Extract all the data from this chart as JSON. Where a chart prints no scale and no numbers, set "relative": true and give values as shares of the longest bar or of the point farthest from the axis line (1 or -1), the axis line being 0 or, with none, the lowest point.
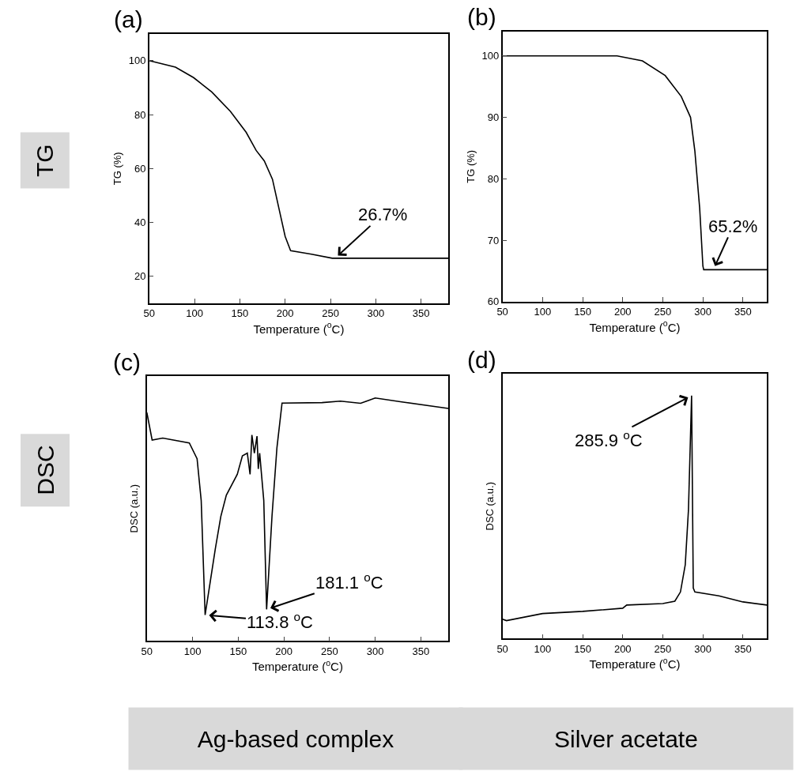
{
  "chart_data": [
    {
      "type": "line",
      "title": "(a)",
      "xlabel": "Temperature ($^{o}$C)",
      "ylabel": "TG (%)",
      "x": [
        50,
        79,
        99,
        119,
        139.6,
        157,
        168,
        177,
        186,
        193,
        200,
        206,
        229,
        252,
        380
      ],
      "series": [
        {
          "color": "#000000",
          "values": [
            100,
            97.6,
            93.7,
            88.4,
            81.2,
            73.4,
            66.7,
            62.8,
            56,
            45.4,
            34.8,
            29.5,
            28.2,
            26.7,
            26.7
          ]
        }
      ],
      "xlim": [
        50,
        380
      ],
      "xticks": [
        50,
        100,
        150,
        200,
        250,
        300,
        350
      ],
      "ylim": [
        10,
        110
      ],
      "yticks": [
        20,
        40,
        60,
        80,
        100
      ],
      "annotations": [
        {
          "text": "26.7%",
          "x": 255,
          "y": 26.7
        },
        "TG"
      ]
    },
    {
      "type": "line",
      "title": "(b)",
      "xlabel": "Temperature ($^{o}$C)",
      "ylabel": "TG (%)",
      "x": [
        50,
        150,
        193,
        224.5,
        253,
        273,
        284.6,
        290,
        296,
        300,
        301,
        380
      ],
      "series": [
        {
          "color": "#000000",
          "values": [
            100,
            100,
            100,
            99.2,
            96.8,
            93.4,
            90,
            84.5,
            75.2,
            65.8,
            65.2,
            65.2
          ]
        }
      ],
      "xlim": [
        50,
        380
      ],
      "xticks": [
        50,
        100,
        150,
        200,
        250,
        300,
        350
      ],
      "ylim": [
        60,
        104
      ],
      "yticks": [
        60,
        70,
        80,
        90,
        100
      ],
      "annotations": [
        {
          "text": "65.2%",
          "x": 313,
          "y": 65.2
        }
      ]
    },
    {
      "type": "line",
      "relative": true,
      "title": "(c)",
      "xlabel": "Temperature ($^{o}$C)",
      "ylabel": "DSC (a.u.)",
      "x": [
        50,
        55.8,
        67.4,
        96.5,
        105,
        109.5,
        113.8,
        125,
        131,
        137,
        149,
        154.6,
        160,
        163,
        165,
        167.7,
        170.6,
        172,
        173.5,
        178,
        181.1,
        187,
        192.4,
        198,
        241.8,
        262,
        284,
        300,
        329,
        380
      ],
      "series": [
        {
          "color": "#000000",
          "values": [
            0.94,
            0.827,
            0.835,
            0.815,
            0.75,
            0.578,
            0.107,
            0.38,
            0.513,
            0.6,
            0.686,
            0.762,
            0.773,
            0.686,
            0.848,
            0.773,
            0.843,
            0.708,
            0.773,
            0.578,
            0.13,
            0.513,
            0.795,
            0.979,
            0.981,
            0.987,
            0.978,
            1.0,
            0.984,
            0.957
          ]
        }
      ],
      "xlim": [
        50,
        380
      ],
      "xticks": [
        50,
        100,
        150,
        200,
        250,
        300,
        350
      ],
      "annotations": [
        {
          "text": "181.1 $^{o}$C",
          "x": 181.1,
          "y": 0.13
        },
        {
          "text": "113.8 $^{o}$C",
          "x": 113.8,
          "y": 0.107
        },
        "DSC",
        "Ag-based complex"
      ]
    },
    {
      "type": "line",
      "relative": true,
      "title": "(d)",
      "xlabel": "Temperature ($^{o}$C)",
      "ylabel": "DSC (a.u.)",
      "x": [
        50,
        55,
        100,
        150,
        200,
        205,
        250,
        265,
        272,
        278,
        282,
        285.9,
        288,
        290,
        320,
        350,
        380
      ],
      "series": [
        {
          "color": "#000000",
          "values": [
            0.08,
            0.074,
            0.103,
            0.112,
            0.125,
            0.138,
            0.144,
            0.154,
            0.192,
            0.304,
            0.53,
            1.0,
            0.208,
            0.192,
            0.176,
            0.151,
            0.138
          ]
        }
      ],
      "xlim": [
        50,
        380
      ],
      "xticks": [
        50,
        100,
        150,
        200,
        250,
        300,
        350
      ],
      "annotations": [
        {
          "text": "285.9 $^{o}$C",
          "x": 285.9,
          "y": 1.0
        },
        "Silver acetate"
      ]
    }
  ]
}
